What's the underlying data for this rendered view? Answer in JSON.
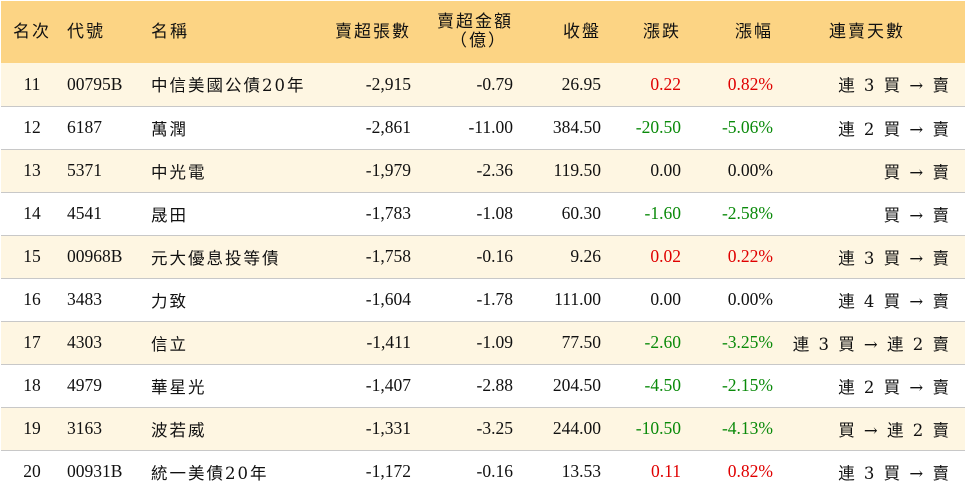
{
  "headers": {
    "rank": "名次",
    "code": "代號",
    "name": "名稱",
    "net_sell_lots": "賣超張數",
    "net_sell_amount_l1": "賣超金額",
    "net_sell_amount_l2": "（億）",
    "close": "收盤",
    "change": "漲跌",
    "change_pct": "漲幅",
    "streak": "連賣天數"
  },
  "colors": {
    "header_bg": "#fcd484",
    "odd_row_bg": "#fef6e2",
    "up": "#e00000",
    "down": "#0a8a0a"
  },
  "rows": [
    {
      "rank": "11",
      "code": "00795B",
      "name": "中信美國公債20年",
      "lots": "-2,915",
      "amount": "-0.79",
      "close": "26.95",
      "change": "0.22",
      "pct": "0.82%",
      "dir": "up",
      "streak": "連 3 買 → 賣"
    },
    {
      "rank": "12",
      "code": "6187",
      "name": "萬潤",
      "lots": "-2,861",
      "amount": "-11.00",
      "close": "384.50",
      "change": "-20.50",
      "pct": "-5.06%",
      "dir": "down",
      "streak": "連 2 買 → 賣"
    },
    {
      "rank": "13",
      "code": "5371",
      "name": "中光電",
      "lots": "-1,979",
      "amount": "-2.36",
      "close": "119.50",
      "change": "0.00",
      "pct": "0.00%",
      "dir": "flat",
      "streak": "買 → 賣"
    },
    {
      "rank": "14",
      "code": "4541",
      "name": "晟田",
      "lots": "-1,783",
      "amount": "-1.08",
      "close": "60.30",
      "change": "-1.60",
      "pct": "-2.58%",
      "dir": "down",
      "streak": "買 → 賣"
    },
    {
      "rank": "15",
      "code": "00968B",
      "name": "元大優息投等債",
      "lots": "-1,758",
      "amount": "-0.16",
      "close": "9.26",
      "change": "0.02",
      "pct": "0.22%",
      "dir": "up",
      "streak": "連 3 買 → 賣"
    },
    {
      "rank": "16",
      "code": "3483",
      "name": "力致",
      "lots": "-1,604",
      "amount": "-1.78",
      "close": "111.00",
      "change": "0.00",
      "pct": "0.00%",
      "dir": "flat",
      "streak": "連 4 買 → 賣"
    },
    {
      "rank": "17",
      "code": "4303",
      "name": "信立",
      "lots": "-1,411",
      "amount": "-1.09",
      "close": "77.50",
      "change": "-2.60",
      "pct": "-3.25%",
      "dir": "down",
      "streak": "連 3 買 → 連 2 賣"
    },
    {
      "rank": "18",
      "code": "4979",
      "name": "華星光",
      "lots": "-1,407",
      "amount": "-2.88",
      "close": "204.50",
      "change": "-4.50",
      "pct": "-2.15%",
      "dir": "down",
      "streak": "連 2 買 → 賣"
    },
    {
      "rank": "19",
      "code": "3163",
      "name": "波若威",
      "lots": "-1,331",
      "amount": "-3.25",
      "close": "244.00",
      "change": "-10.50",
      "pct": "-4.13%",
      "dir": "down",
      "streak": "買 → 連 2 賣"
    },
    {
      "rank": "20",
      "code": "00931B",
      "name": "統一美債20年",
      "lots": "-1,172",
      "amount": "-0.16",
      "close": "13.53",
      "change": "0.11",
      "pct": "0.82%",
      "dir": "up",
      "streak": "連 3 買 → 賣"
    }
  ]
}
